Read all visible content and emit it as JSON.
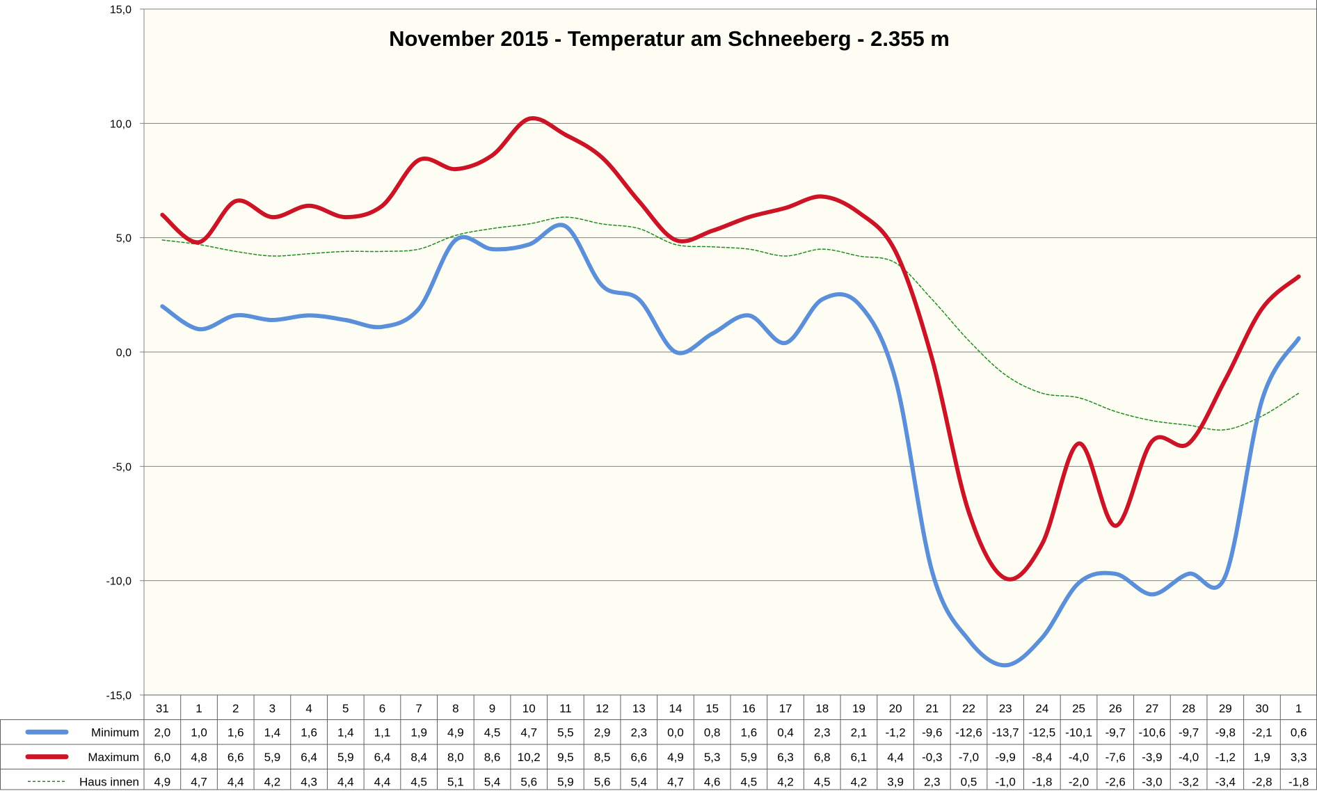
{
  "chart_data": {
    "type": "line",
    "title": "November 2015 - Temperatur am Schneeberg - 2.355 m",
    "xlabel": "",
    "ylabel": "",
    "categories": [
      "31",
      "1",
      "2",
      "3",
      "4",
      "5",
      "6",
      "7",
      "8",
      "9",
      "10",
      "11",
      "12",
      "13",
      "14",
      "15",
      "16",
      "17",
      "18",
      "19",
      "20",
      "21",
      "22",
      "23",
      "24",
      "25",
      "26",
      "27",
      "28",
      "29",
      "30",
      "1"
    ],
    "ylim": [
      -15,
      15
    ],
    "yticks": [
      15,
      10,
      5,
      0,
      -5,
      -10,
      -15
    ],
    "ytick_labels": [
      "15,0",
      "10,0",
      "5,0",
      "0,0",
      "-5,0",
      "-10,0",
      "-15,0"
    ],
    "grid": true,
    "legend_position": "data-table-left",
    "series": [
      {
        "name": "Minimum",
        "color": "#5B8FD9",
        "style": "solid-thick",
        "values": [
          2.0,
          1.0,
          1.6,
          1.4,
          1.6,
          1.4,
          1.1,
          1.9,
          4.9,
          4.5,
          4.7,
          5.5,
          2.9,
          2.3,
          0.0,
          0.8,
          1.6,
          0.4,
          2.3,
          2.1,
          -1.2,
          -9.6,
          -12.6,
          -13.7,
          -12.5,
          -10.1,
          -9.7,
          -10.6,
          -9.7,
          -9.8,
          -2.1,
          0.6
        ],
        "labels": [
          "2,0",
          "1,0",
          "1,6",
          "1,4",
          "1,6",
          "1,4",
          "1,1",
          "1,9",
          "4,9",
          "4,5",
          "4,7",
          "5,5",
          "2,9",
          "2,3",
          "0,0",
          "0,8",
          "1,6",
          "0,4",
          "2,3",
          "2,1",
          "-1,2",
          "-9,6",
          "-12,6",
          "-13,7",
          "-12,5",
          "-10,1",
          "-9,7",
          "-10,6",
          "-9,7",
          "-9,8",
          "-2,1",
          "0,6"
        ]
      },
      {
        "name": "Maximum",
        "color": "#CC1426",
        "style": "solid-thick",
        "values": [
          6.0,
          4.8,
          6.6,
          5.9,
          6.4,
          5.9,
          6.4,
          8.4,
          8.0,
          8.6,
          10.2,
          9.5,
          8.5,
          6.6,
          4.9,
          5.3,
          5.9,
          6.3,
          6.8,
          6.1,
          4.4,
          -0.3,
          -7.0,
          -9.9,
          -8.4,
          -4.0,
          -7.6,
          -3.9,
          -4.0,
          -1.2,
          1.9,
          3.3
        ],
        "labels": [
          "6,0",
          "4,8",
          "6,6",
          "5,9",
          "6,4",
          "5,9",
          "6,4",
          "8,4",
          "8,0",
          "8,6",
          "10,2",
          "9,5",
          "8,5",
          "6,6",
          "4,9",
          "5,3",
          "5,9",
          "6,3",
          "6,8",
          "6,1",
          "4,4",
          "-0,3",
          "-7,0",
          "-9,9",
          "-8,4",
          "-4,0",
          "-7,6",
          "-3,9",
          "-4,0",
          "-1,2",
          "1,9",
          "3,3"
        ]
      },
      {
        "name": "Haus innen",
        "color": "#1E8C1E",
        "style": "dashed-thin",
        "values": [
          4.9,
          4.7,
          4.4,
          4.2,
          4.3,
          4.4,
          4.4,
          4.5,
          5.1,
          5.4,
          5.6,
          5.9,
          5.6,
          5.4,
          4.7,
          4.6,
          4.5,
          4.2,
          4.5,
          4.2,
          3.9,
          2.3,
          0.5,
          -1.0,
          -1.8,
          -2.0,
          -2.6,
          -3.0,
          -3.2,
          -3.4,
          -2.8,
          -1.8
        ],
        "labels": [
          "4,9",
          "4,7",
          "4,4",
          "4,2",
          "4,3",
          "4,4",
          "4,4",
          "4,5",
          "5,1",
          "5,4",
          "5,6",
          "5,9",
          "5,6",
          "5,4",
          "4,7",
          "4,6",
          "4,5",
          "4,2",
          "4,5",
          "4,2",
          "3,9",
          "2,3",
          "0,5",
          "-1,0",
          "-1,8",
          "-2,0",
          "-2,6",
          "-3,0",
          "-3,2",
          "-3,4",
          "-2,8",
          "-1,8"
        ]
      }
    ],
    "colors": {
      "plot_background": "#FDFDF4",
      "gridline": "#808080",
      "border": "#808080"
    }
  }
}
